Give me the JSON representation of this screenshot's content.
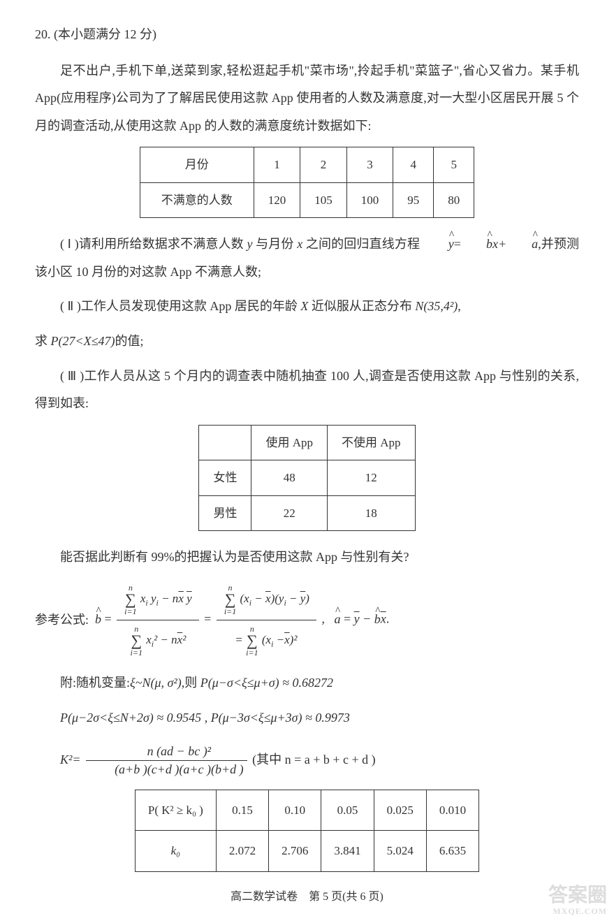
{
  "question": {
    "number": "20.",
    "score": "(本小题满分 12 分)",
    "intro": "足不出户,手机下单,送菜到家,轻松逛起手机\"菜市场\",拎起手机\"菜篮子\",省心又省力。某手机 App(应用程序)公司为了了解居民使用这款 App 使用者的人数及满意度,对一大型小区居民开展 5 个月的调查活动,从使用这款 App 的人数的满意度统计数据如下:"
  },
  "table1": {
    "headers": [
      "月份",
      "1",
      "2",
      "3",
      "4",
      "5"
    ],
    "row_label": "不满意的人数",
    "values": [
      "120",
      "105",
      "100",
      "95",
      "80"
    ]
  },
  "part1": {
    "label": "( Ⅰ )",
    "text_pre": "请利用所给数据求不满意人数 ",
    "y": "y",
    "text_mid1": " 与月份 ",
    "x": "x",
    "text_mid2": " 之间的回归直线方程 ",
    "eq_left": "y",
    "eq_eq": "=",
    "eq_b": "b",
    "eq_x": "x+",
    "eq_a": "a",
    "text_end": ",并预测该小区 10 月份的对这款 App 不满意人数;"
  },
  "part2": {
    "label": "( Ⅱ )",
    "text_pre": "工作人员发现使用这款 App 居民的年龄 ",
    "X": "X",
    "text_mid": " 近似服从正态分布 ",
    "dist": "N(35,4²)",
    "text_qiu": "求 ",
    "prob": "P(27<X≤47)",
    "text_end": "的值;"
  },
  "part3": {
    "label": "( Ⅲ )",
    "text": "工作人员从这 5 个月内的调查表中随机抽查 100 人,调查是否使用这款 App 与性别的关系,得到如表:"
  },
  "table2": {
    "col1": "使用 App",
    "col2": "不使用 App",
    "row1_label": "女性",
    "row1": [
      "48",
      "12"
    ],
    "row2_label": "男性",
    "row2": [
      "22",
      "18"
    ]
  },
  "conclusion_q": "能否据此判断有 99%的把握认为是否使用这款 App 与性别有关?",
  "formula_label": "参考公式:",
  "formula_end": ".",
  "attach": {
    "line1_pre": "附:随机变量:",
    "line1_dist": "ξ~N(μ, σ²)",
    "line1_mid": ",则 ",
    "line1_p": "P(μ−σ<ξ≤μ+σ) ≈ 0.68272",
    "line2_p1": "P(μ−2σ<ξ≤N+2σ) ≈ 0.9545",
    "line2_sep": " , ",
    "line2_p2": "P(μ−3σ<ξ≤μ+3σ) ≈ 0.9973",
    "k2_label": "K²=",
    "k2_top": "n (ad − bc )²",
    "k2_bot": "(a+b )(c+d )(a+c )(b+d )",
    "k2_note": "(其中 n = a + b + c + d )"
  },
  "table3": {
    "row1_label": "P( K² ≥ k₀ )",
    "row1": [
      "0.15",
      "0.10",
      "0.05",
      "0.025",
      "0.010"
    ],
    "row2_label": "k₀",
    "row2": [
      "2.072",
      "2.706",
      "3.841",
      "5.024",
      "6.635"
    ]
  },
  "footer": {
    "text": "高二数学试卷　第 5 页(共 6 页)"
  },
  "watermark": {
    "main": "答案圈",
    "sub": "MXQE.COM"
  }
}
